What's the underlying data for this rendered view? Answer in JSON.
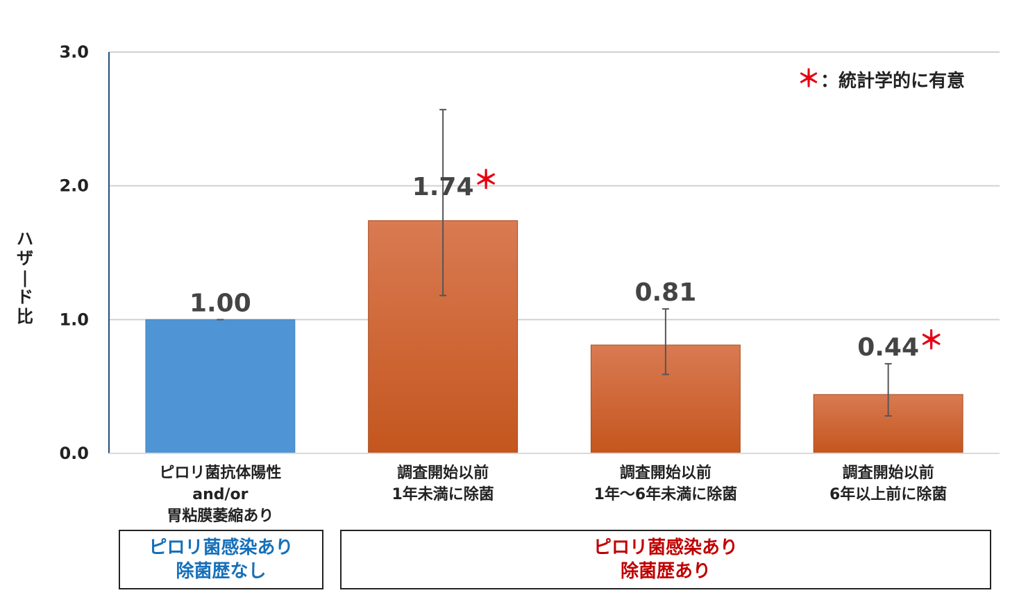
{
  "chart_data": {
    "type": "bar",
    "ylabel": "ハザード比",
    "ylim": [
      0,
      3.0
    ],
    "yticks": [
      "0.0",
      "1.0",
      "2.0",
      "3.0"
    ],
    "grid": true,
    "categories": [
      [
        "ピロリ菌抗体陽性",
        "and/or",
        "胃粘膜萎縮あり"
      ],
      [
        "調査開始以前",
        "1年未満に除菌"
      ],
      [
        "調査開始以前",
        "1年～6年未満に除菌"
      ],
      [
        "調査開始以前",
        "6年以上前に除菌"
      ]
    ],
    "values": [
      1.0,
      1.74,
      0.81,
      0.44
    ],
    "value_labels": [
      "1.00",
      "1.74",
      "0.81",
      "0.44"
    ],
    "error_low": [
      1.0,
      1.18,
      0.59,
      0.28
    ],
    "error_high": [
      1.0,
      2.57,
      1.08,
      0.67
    ],
    "significant": [
      false,
      true,
      false,
      true
    ],
    "significance_mark": "＊",
    "bar_colors": [
      "#4f94d4",
      "#cf5e2e",
      "#cf5e2e",
      "#cf5e2e"
    ],
    "legend": {
      "mark": "＊",
      "text": "：統計学的に有意",
      "position": "top-right"
    }
  },
  "groups": [
    {
      "lines": [
        "ピロリ菌感染あり",
        "除菌歴なし"
      ],
      "color": "#1670b9"
    },
    {
      "lines": [
        "ピロリ菌感染あり",
        "除菌歴あり"
      ],
      "color": "#c00000"
    }
  ],
  "colors": {
    "significance": "#e60012",
    "axis": "#1f4e79",
    "grid": "#d0d0d0"
  }
}
